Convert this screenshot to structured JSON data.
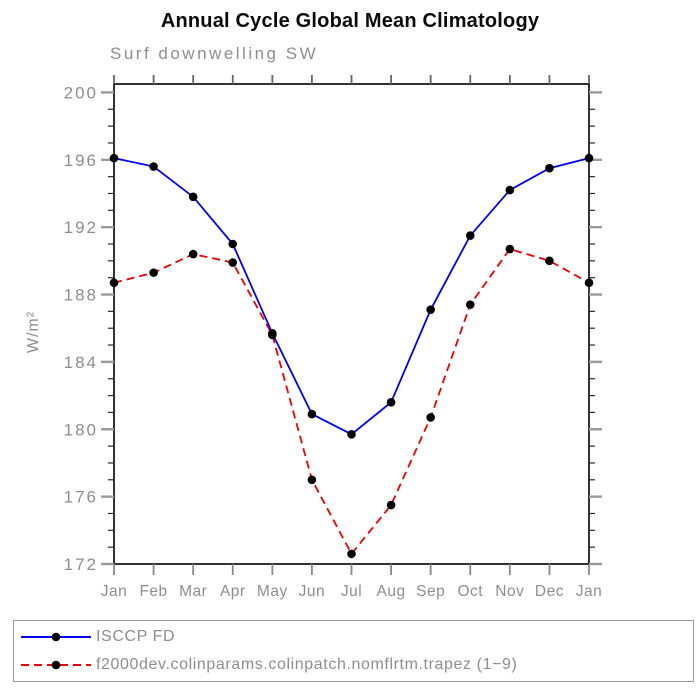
{
  "title": "Annual Cycle Global Mean Climatology",
  "chart_data": {
    "type": "line",
    "title": "Annual Cycle Global Mean Climatology",
    "subtitle": "Surf downwelling SW",
    "ylabel": "W/m²",
    "xlabel": "",
    "categories": [
      "Jan",
      "Feb",
      "Mar",
      "Apr",
      "May",
      "Jun",
      "Jul",
      "Aug",
      "Sep",
      "Oct",
      "Nov",
      "Dec",
      "Jan"
    ],
    "ylim": [
      172,
      200.5
    ],
    "yticks_major": [
      172,
      176,
      180,
      184,
      188,
      192,
      196,
      200
    ],
    "minor_tick_step": 1,
    "grid": "off",
    "legend_position": "bottom",
    "series": [
      {
        "name": "ISCCP FD",
        "line_style": "solid",
        "color": "#0000ee",
        "marker": "circle",
        "marker_color": "#000000",
        "values": [
          196.1,
          195.6,
          193.8,
          191.0,
          185.7,
          180.9,
          179.7,
          181.6,
          187.1,
          191.5,
          194.2,
          195.5,
          196.1
        ]
      },
      {
        "name": "f2000dev.colinparams.colinpatch.nomflrtm.trapez (1−9)",
        "line_style": "dashed",
        "color": "#ee0000",
        "marker": "circle",
        "marker_color": "#000000",
        "values": [
          188.7,
          189.3,
          190.4,
          189.9,
          185.6,
          177.0,
          172.6,
          175.5,
          180.7,
          187.4,
          190.7,
          190.0,
          188.7
        ]
      }
    ]
  },
  "colors": {
    "axis": "#000000",
    "major_tick": "#9a9a9a",
    "minor_tick": "#2a2a2a",
    "label_gray": "#8e8e8e",
    "title_black": "#0a0a0a"
  }
}
